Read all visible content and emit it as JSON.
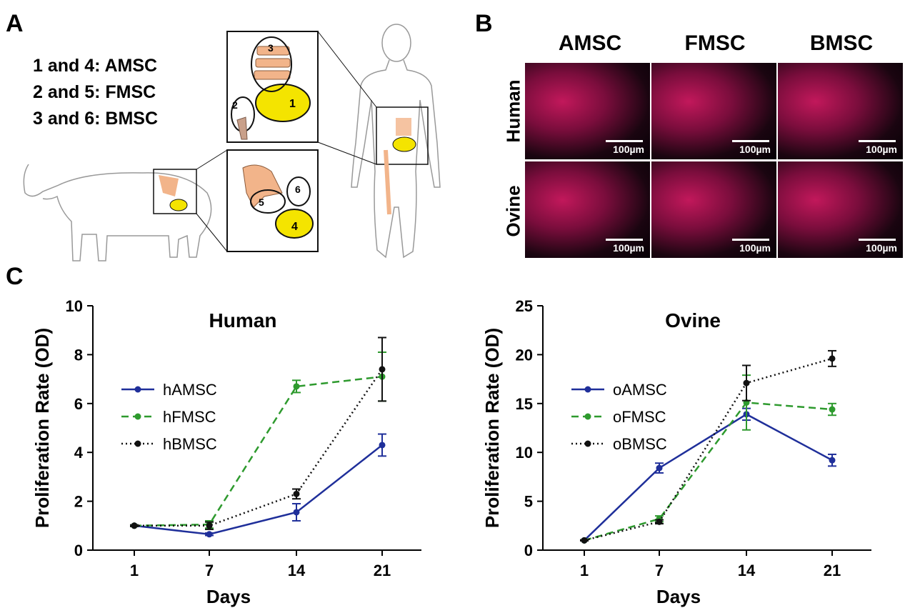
{
  "panels": {
    "a": {
      "letter": "A",
      "legend": [
        "1 and 4: AMSC",
        "2 and 5: FMSC",
        "3 and 6: BMSC"
      ],
      "human_labels": [
        "1",
        "2",
        "3"
      ],
      "sheep_labels": [
        "4",
        "5",
        "6"
      ]
    },
    "b": {
      "letter": "B",
      "columns": [
        "AMSC",
        "FMSC",
        "BMSC"
      ],
      "rows": [
        "Human",
        "Ovine"
      ],
      "scale_label": "100µm"
    },
    "c": {
      "letter": "C"
    }
  },
  "colors": {
    "blue": "#1f2f9a",
    "green": "#2e9a2e",
    "black": "#111111",
    "yellow": "#f4e400",
    "bone": "#f2b48a"
  },
  "chart_data": [
    {
      "type": "line",
      "title": "Human",
      "xlabel": "Days",
      "ylabel": "Proliferation Rate (OD)",
      "x": [
        1,
        7,
        14,
        21
      ],
      "xticks": [
        "1",
        "7",
        "14",
        "21"
      ],
      "ylim": [
        0,
        10
      ],
      "yticks": [
        0,
        2,
        4,
        6,
        8,
        10
      ],
      "series": [
        {
          "name": "hAMSC",
          "style": "solid",
          "color": "#1f2f9a",
          "values": [
            1.0,
            0.65,
            1.55,
            4.3
          ],
          "err": [
            0.03,
            0.05,
            0.35,
            0.45
          ]
        },
        {
          "name": "hFMSC",
          "style": "dashed",
          "color": "#2e9a2e",
          "values": [
            1.0,
            1.05,
            6.7,
            7.1
          ],
          "err": [
            0.03,
            0.15,
            0.25,
            1.0
          ]
        },
        {
          "name": "hBMSC",
          "style": "dotted",
          "color": "#111111",
          "values": [
            1.0,
            1.0,
            2.3,
            7.4
          ],
          "err": [
            0.03,
            0.15,
            0.2,
            1.3
          ]
        }
      ]
    },
    {
      "type": "line",
      "title": "Ovine",
      "xlabel": "Days",
      "ylabel": "Proliferation Rate (OD)",
      "x": [
        1,
        7,
        14,
        21
      ],
      "xticks": [
        "1",
        "7",
        "14",
        "21"
      ],
      "ylim": [
        0,
        25
      ],
      "yticks": [
        0,
        5,
        10,
        15,
        20,
        25
      ],
      "series": [
        {
          "name": "oAMSC",
          "style": "solid",
          "color": "#1f2f9a",
          "values": [
            1.0,
            8.4,
            13.9,
            9.2
          ],
          "err": [
            0.05,
            0.5,
            0.6,
            0.6
          ]
        },
        {
          "name": "oFMSC",
          "style": "dashed",
          "color": "#2e9a2e",
          "values": [
            1.0,
            3.2,
            15.1,
            14.4
          ],
          "err": [
            0.05,
            0.3,
            2.8,
            0.6
          ]
        },
        {
          "name": "oBMSC",
          "style": "dotted",
          "color": "#111111",
          "values": [
            1.0,
            2.9,
            17.1,
            19.6
          ],
          "err": [
            0.05,
            0.2,
            1.8,
            0.8
          ]
        }
      ]
    }
  ]
}
